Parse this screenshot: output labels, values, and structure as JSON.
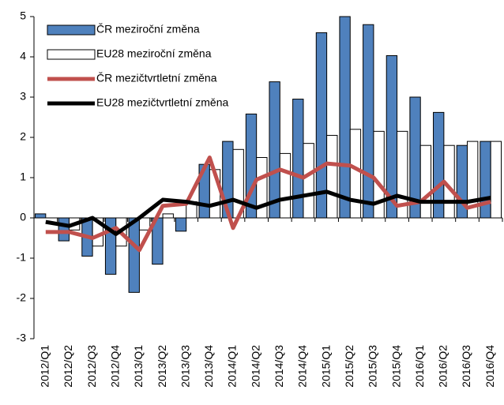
{
  "chart_data": {
    "type": "bar",
    "categories": [
      "2012/Q1",
      "2012/Q2",
      "2012/Q3",
      "2012/Q4",
      "2013/Q1",
      "2013/Q2",
      "2013/Q3",
      "2013/Q4",
      "2014/Q1",
      "2014/Q2",
      "2014/Q3",
      "2014/Q4",
      "2015/Q1",
      "2015/Q2",
      "2015/Q3",
      "2015/Q4",
      "2016/Q1",
      "2016/Q2",
      "2016/Q3",
      "2016/Q4"
    ],
    "series": [
      {
        "name": "ČR meziroční změna",
        "type": "bar",
        "color": "#4f81bd",
        "values": [
          0.1,
          -0.57,
          -0.95,
          -1.4,
          -1.85,
          -1.15,
          -0.33,
          1.33,
          1.9,
          2.58,
          3.38,
          2.95,
          4.6,
          5.0,
          4.8,
          4.03,
          3.0,
          2.62,
          1.8,
          1.9
        ]
      },
      {
        "name": "EU28 meziroční  změna",
        "type": "bar",
        "color": "#ffffff",
        "values": [
          0,
          -0.3,
          -0.7,
          -0.7,
          -0.3,
          0.1,
          0.4,
          1.2,
          1.7,
          1.5,
          1.6,
          1.85,
          2.05,
          2.2,
          2.15,
          2.15,
          1.8,
          1.8,
          1.9,
          1.9
        ]
      },
      {
        "name": "ČR mezičtvrtletní změna",
        "type": "line",
        "color": "#c0504d",
        "values": [
          -0.35,
          -0.35,
          -0.5,
          -0.25,
          -0.8,
          0.3,
          0.35,
          1.5,
          -0.25,
          0.95,
          1.2,
          1.0,
          1.35,
          1.3,
          1.0,
          0.3,
          0.4,
          0.9,
          0.25,
          0.4
        ]
      },
      {
        "name": "EU28 mezičtvrtletní změna",
        "type": "line",
        "color": "#000000",
        "values": [
          -0.1,
          -0.2,
          0.0,
          -0.4,
          0.0,
          0.45,
          0.4,
          0.3,
          0.45,
          0.25,
          0.45,
          0.55,
          0.65,
          0.45,
          0.35,
          0.55,
          0.4,
          0.4,
          0.4,
          0.5
        ]
      }
    ],
    "ylim": [
      -3,
      5
    ],
    "yticks": [
      -3,
      -2,
      -1,
      0,
      1,
      2,
      3,
      4,
      5
    ]
  }
}
